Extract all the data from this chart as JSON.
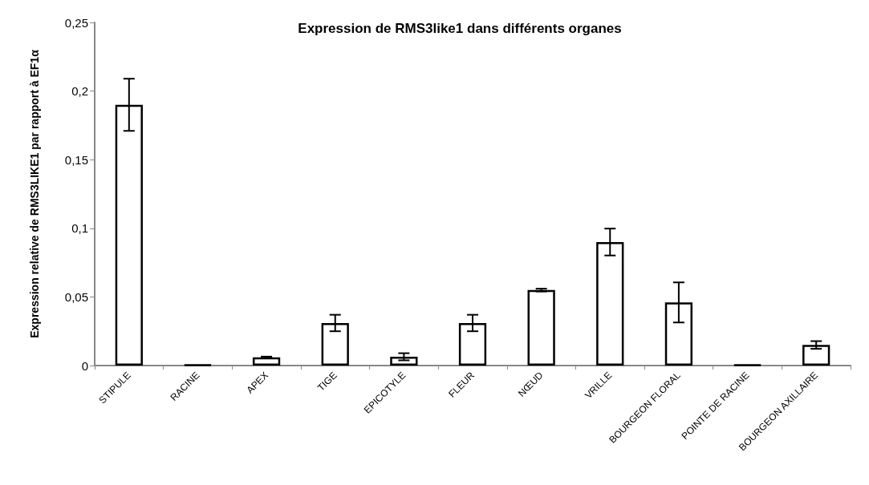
{
  "chart_data": {
    "type": "bar",
    "title": "Expression de RMS3like1 dans différents organes",
    "ylabel": "Expression relative de RMS3LIKE1 par rapport à EF1α",
    "categories": [
      "STIPULE",
      "RACINE",
      "APEX",
      "TIGE",
      "EPICOTYLE",
      "FLEUR",
      "NŒUD",
      "VRILLE",
      "BOURGEON FLORAL",
      "POINTE DE RACINE",
      "BOURGEON AXILLAIRE"
    ],
    "values": [
      0.19,
      0.0005,
      0.006,
      0.031,
      0.0064,
      0.031,
      0.055,
      0.09,
      0.046,
      0.0005,
      0.015
    ],
    "errors": [
      0.019,
      null,
      0.0005,
      0.006,
      0.0026,
      0.006,
      0.001,
      0.0098,
      0.0146,
      null,
      0.0028
    ],
    "colors": [
      "#ffffff",
      "#000000",
      "#ffffff",
      "#ffffff",
      "#ffffff",
      "#ffffff",
      "#ffffff",
      "#ffffff",
      "#ffffff",
      "#000000",
      "#ffffff"
    ],
    "ylim": [
      0,
      0.25
    ],
    "yticks": [
      {
        "value": 0,
        "label": "0"
      },
      {
        "value": 0.05,
        "label": "0,05"
      },
      {
        "value": 0.1,
        "label": "0,1"
      },
      {
        "value": 0.15,
        "label": "0,15"
      },
      {
        "value": 0.2,
        "label": "0,2"
      },
      {
        "value": 0.25,
        "label": "0,25"
      }
    ],
    "grid": false
  }
}
